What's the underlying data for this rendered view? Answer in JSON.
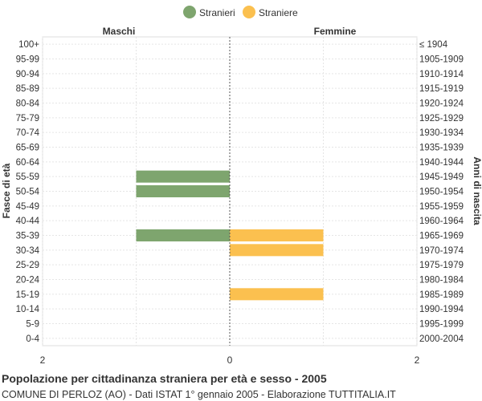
{
  "chart_data": {
    "type": "bar",
    "orientation": "horizontal-pyramid",
    "title": "Popolazione per cittadinanza straniera per età e sesso - 2005",
    "subtitle": "COMUNE DI PERLOZ (AO) - Dati ISTAT 1° gennaio 2005 - Elaborazione TUTTITALIA.IT",
    "left_header": "Maschi",
    "right_header": "Femmine",
    "ylabel_left": "Fasce di età",
    "ylabel_right": "Anni di nascita",
    "xlim": [
      -2,
      2
    ],
    "x_ticks": [
      "2",
      "0",
      "2"
    ],
    "grid": true,
    "legend_position": "top-center",
    "age_groups": [
      "100+",
      "95-99",
      "90-94",
      "85-89",
      "80-84",
      "75-79",
      "70-74",
      "65-69",
      "60-64",
      "55-59",
      "50-54",
      "45-49",
      "40-44",
      "35-39",
      "30-34",
      "25-29",
      "20-24",
      "15-19",
      "10-14",
      "5-9",
      "0-4"
    ],
    "birth_years": [
      "≤ 1904",
      "1905-1909",
      "1910-1914",
      "1915-1919",
      "1920-1924",
      "1925-1929",
      "1930-1934",
      "1935-1939",
      "1940-1944",
      "1945-1949",
      "1950-1954",
      "1955-1959",
      "1960-1964",
      "1965-1969",
      "1970-1974",
      "1975-1979",
      "1980-1984",
      "1985-1989",
      "1990-1994",
      "1995-1999",
      "2000-2004"
    ],
    "series": [
      {
        "name": "Stranieri",
        "side": "left",
        "color": "#7ea56e",
        "values": [
          0,
          0,
          0,
          0,
          0,
          0,
          0,
          0,
          0,
          1,
          1,
          0,
          0,
          1,
          0,
          0,
          0,
          0,
          0,
          0,
          0
        ]
      },
      {
        "name": "Straniere",
        "side": "right",
        "color": "#fbc04f",
        "values": [
          0,
          0,
          0,
          0,
          0,
          0,
          0,
          0,
          0,
          0,
          0,
          0,
          0,
          1,
          1,
          0,
          0,
          1,
          0,
          0,
          0
        ]
      }
    ]
  }
}
